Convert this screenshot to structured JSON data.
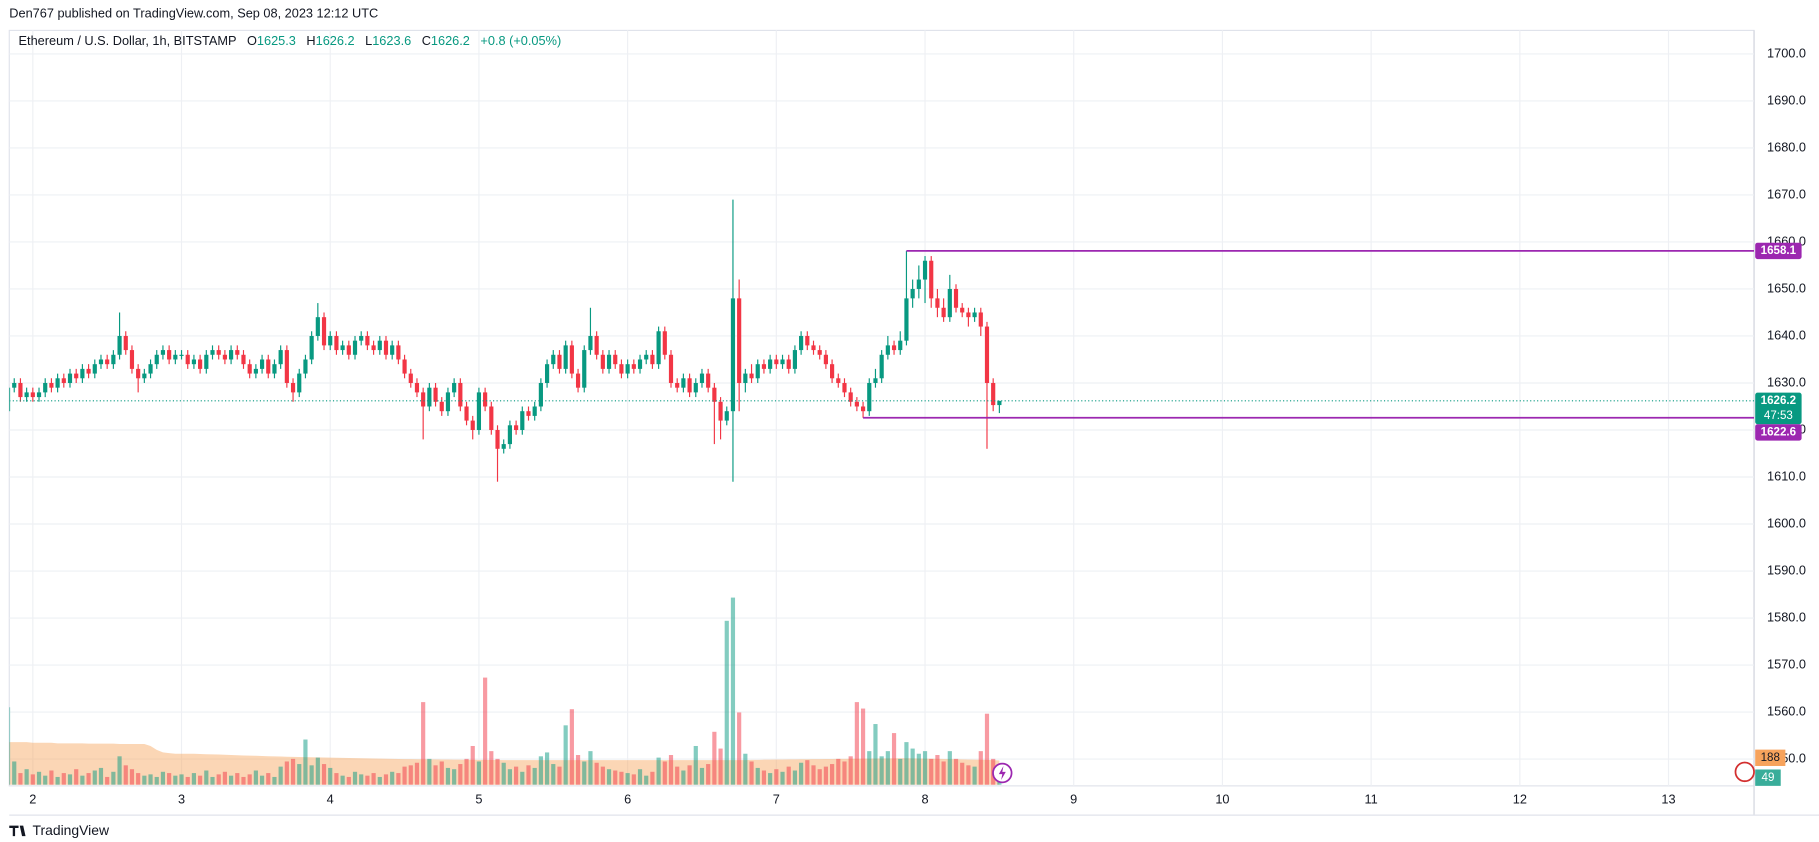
{
  "header": "Den767 published on TradingView.com, Sep 08, 2023 12:12 UTC",
  "footer": "TradingView",
  "chart_data": {
    "type": "candlestick",
    "symbol": "Ethereum / U.S. Dollar, 1h, BITSTAMP",
    "ohlc_labels": [
      "O",
      "H",
      "L",
      "C"
    ],
    "legend_change": "+0.8 (+0.05%)",
    "countdown": "47:53",
    "up_color": "#089981",
    "down_color": "#f23645",
    "volume_ma_color": "#f7a35c",
    "level_color": "#9c27b0",
    "grid": true,
    "xlim": [
      0.2,
      281.8
    ],
    "xticks": [
      {
        "value": 4,
        "label": "2"
      },
      {
        "value": 28,
        "label": "3"
      },
      {
        "value": 52,
        "label": "4"
      },
      {
        "value": 76,
        "label": "5"
      },
      {
        "value": 100,
        "label": "6"
      },
      {
        "value": 124,
        "label": "7"
      },
      {
        "value": 148,
        "label": "8"
      },
      {
        "value": 172,
        "label": "9"
      },
      {
        "value": 196,
        "label": "10"
      },
      {
        "value": 220,
        "label": "11"
      },
      {
        "value": 244,
        "label": "12"
      },
      {
        "value": 268,
        "label": "13"
      }
    ],
    "ylim": [
      1544.3,
      1705
    ],
    "yticks": [
      {
        "value": 1550,
        "label": "1550.0"
      },
      {
        "value": 1560,
        "label": "1560.0"
      },
      {
        "value": 1570,
        "label": "1570.0"
      },
      {
        "value": 1580,
        "label": "1580.0"
      },
      {
        "value": 1590,
        "label": "1590.0"
      },
      {
        "value": 1600,
        "label": "1600.0"
      },
      {
        "value": 1610,
        "label": "1610.0"
      },
      {
        "value": 1620,
        "label": "1620.0"
      },
      {
        "value": 1630,
        "label": "1630.0"
      },
      {
        "value": 1640,
        "label": "1640.0"
      },
      {
        "value": 1650,
        "label": "1650.0"
      },
      {
        "value": 1660,
        "label": "1660.0"
      },
      {
        "value": 1670,
        "label": "1670.0"
      },
      {
        "value": 1680,
        "label": "1680.0"
      },
      {
        "value": 1690,
        "label": "1690.0"
      },
      {
        "value": 1700,
        "label": "1700.0"
      }
    ],
    "levels": [
      {
        "value": 1658.1,
        "x": 145
      },
      {
        "value": 1622.6,
        "x": 138
      }
    ],
    "ohlc": [
      [
        1624,
        1631,
        1618,
        1629
      ],
      [
        1629,
        1631,
        1628,
        1630
      ],
      [
        1630,
        1631,
        1626,
        1627
      ],
      [
        1627,
        1629,
        1626,
        1628
      ],
      [
        1628,
        1629,
        1626,
        1627
      ],
      [
        1627,
        1629,
        1626,
        1628
      ],
      [
        1628,
        1631,
        1627,
        1630
      ],
      [
        1630,
        1631,
        1628,
        1629
      ],
      [
        1629,
        1632,
        1628,
        1631
      ],
      [
        1631,
        1632,
        1629,
        1630
      ],
      [
        1630,
        1633,
        1629,
        1632
      ],
      [
        1632,
        1633,
        1630,
        1631
      ],
      [
        1631,
        1634,
        1630,
        1633
      ],
      [
        1633,
        1634,
        1631,
        1632
      ],
      [
        1632,
        1635,
        1631,
        1634
      ],
      [
        1634,
        1636,
        1633,
        1635
      ],
      [
        1635,
        1636,
        1633,
        1634
      ],
      [
        1634,
        1637,
        1633,
        1636
      ],
      [
        1636,
        1645,
        1635,
        1640
      ],
      [
        1640,
        1641,
        1636,
        1637
      ],
      [
        1637,
        1638,
        1632,
        1633
      ],
      [
        1633,
        1634,
        1628,
        1631
      ],
      [
        1631,
        1633,
        1630,
        1632
      ],
      [
        1632,
        1635,
        1631,
        1634
      ],
      [
        1634,
        1637,
        1633,
        1636
      ],
      [
        1636,
        1638,
        1635,
        1637
      ],
      [
        1637,
        1638,
        1634,
        1635
      ],
      [
        1635,
        1637,
        1634,
        1636
      ],
      [
        1636,
        1637,
        1635,
        1636
      ],
      [
        1636,
        1637,
        1633,
        1634
      ],
      [
        1634,
        1636,
        1633,
        1635
      ],
      [
        1635,
        1636,
        1632,
        1633
      ],
      [
        1633,
        1637,
        1632,
        1636
      ],
      [
        1636,
        1638,
        1635,
        1637
      ],
      [
        1637,
        1638,
        1635,
        1636
      ],
      [
        1636,
        1637,
        1634,
        1635
      ],
      [
        1635,
        1638,
        1634,
        1637
      ],
      [
        1637,
        1638,
        1635,
        1636
      ],
      [
        1636,
        1637,
        1633,
        1634
      ],
      [
        1634,
        1635,
        1631,
        1632
      ],
      [
        1632,
        1634,
        1631,
        1633
      ],
      [
        1633,
        1636,
        1632,
        1635
      ],
      [
        1635,
        1636,
        1631,
        1632
      ],
      [
        1632,
        1635,
        1631,
        1634
      ],
      [
        1634,
        1638,
        1633,
        1637
      ],
      [
        1637,
        1638,
        1629,
        1630
      ],
      [
        1630,
        1631,
        1626,
        1628
      ],
      [
        1628,
        1633,
        1627,
        1632
      ],
      [
        1632,
        1636,
        1631,
        1635
      ],
      [
        1635,
        1641,
        1634,
        1640
      ],
      [
        1640,
        1647,
        1639,
        1644
      ],
      [
        1644,
        1645,
        1637,
        1638
      ],
      [
        1638,
        1641,
        1637,
        1640
      ],
      [
        1640,
        1641,
        1636,
        1637
      ],
      [
        1637,
        1639,
        1636,
        1638
      ],
      [
        1638,
        1639,
        1635,
        1636
      ],
      [
        1636,
        1640,
        1635,
        1639
      ],
      [
        1639,
        1641,
        1638,
        1640
      ],
      [
        1640,
        1641,
        1637,
        1638
      ],
      [
        1638,
        1639,
        1636,
        1637
      ],
      [
        1637,
        1640,
        1636,
        1639
      ],
      [
        1639,
        1640,
        1635,
        1636
      ],
      [
        1636,
        1639,
        1635,
        1638
      ],
      [
        1638,
        1639,
        1634,
        1635
      ],
      [
        1635,
        1636,
        1631,
        1632
      ],
      [
        1632,
        1633,
        1629,
        1630
      ],
      [
        1630,
        1631,
        1627,
        1628
      ],
      [
        1628,
        1629,
        1618,
        1625
      ],
      [
        1625,
        1630,
        1624,
        1629
      ],
      [
        1629,
        1630,
        1625,
        1626
      ],
      [
        1626,
        1627,
        1623,
        1624
      ],
      [
        1624,
        1629,
        1623,
        1628
      ],
      [
        1628,
        1631,
        1627,
        1630
      ],
      [
        1630,
        1631,
        1624,
        1625
      ],
      [
        1625,
        1626,
        1621,
        1622
      ],
      [
        1622,
        1623,
        1618,
        1620
      ],
      [
        1620,
        1629,
        1619,
        1628
      ],
      [
        1628,
        1629,
        1624,
        1625
      ],
      [
        1625,
        1626,
        1619,
        1620
      ],
      [
        1620,
        1621,
        1609,
        1616
      ],
      [
        1616,
        1618,
        1615,
        1617
      ],
      [
        1617,
        1622,
        1616,
        1621
      ],
      [
        1621,
        1622,
        1619,
        1620
      ],
      [
        1620,
        1625,
        1619,
        1624
      ],
      [
        1624,
        1625,
        1622,
        1623
      ],
      [
        1623,
        1626,
        1622,
        1625
      ],
      [
        1625,
        1631,
        1624,
        1630
      ],
      [
        1630,
        1635,
        1629,
        1634
      ],
      [
        1634,
        1637,
        1633,
        1636
      ],
      [
        1636,
        1637,
        1632,
        1633
      ],
      [
        1633,
        1639,
        1632,
        1638
      ],
      [
        1638,
        1639,
        1631,
        1632
      ],
      [
        1632,
        1633,
        1628,
        1629
      ],
      [
        1629,
        1638,
        1628,
        1637
      ],
      [
        1637,
        1646,
        1636,
        1640
      ],
      [
        1640,
        1641,
        1635,
        1636
      ],
      [
        1636,
        1637,
        1632,
        1633
      ],
      [
        1633,
        1637,
        1632,
        1636
      ],
      [
        1636,
        1637,
        1633,
        1634
      ],
      [
        1634,
        1635,
        1631,
        1632
      ],
      [
        1632,
        1635,
        1631,
        1634
      ],
      [
        1634,
        1635,
        1632,
        1633
      ],
      [
        1633,
        1636,
        1632,
        1635
      ],
      [
        1635,
        1637,
        1634,
        1636
      ],
      [
        1636,
        1637,
        1633,
        1634
      ],
      [
        1634,
        1642,
        1633,
        1641
      ],
      [
        1641,
        1642,
        1635,
        1636
      ],
      [
        1636,
        1637,
        1629,
        1630
      ],
      [
        1630,
        1631,
        1628,
        1629
      ],
      [
        1629,
        1632,
        1628,
        1631
      ],
      [
        1631,
        1632,
        1627,
        1628
      ],
      [
        1628,
        1631,
        1627,
        1630
      ],
      [
        1630,
        1633,
        1629,
        1632
      ],
      [
        1632,
        1633,
        1628,
        1629
      ],
      [
        1629,
        1630,
        1617,
        1626
      ],
      [
        1626,
        1627,
        1618,
        1622
      ],
      [
        1622,
        1625,
        1621,
        1624
      ],
      [
        1624,
        1669,
        1609,
        1648
      ],
      [
        1648,
        1652,
        1624,
        1630
      ],
      [
        1630,
        1633,
        1628,
        1632
      ],
      [
        1632,
        1634,
        1630,
        1631
      ],
      [
        1631,
        1635,
        1630,
        1634
      ],
      [
        1634,
        1635,
        1632,
        1633
      ],
      [
        1633,
        1636,
        1632,
        1635
      ],
      [
        1635,
        1636,
        1633,
        1634
      ],
      [
        1634,
        1636,
        1633,
        1635
      ],
      [
        1635,
        1636,
        1632,
        1633
      ],
      [
        1633,
        1638,
        1632,
        1637
      ],
      [
        1637,
        1641,
        1636,
        1640
      ],
      [
        1640,
        1641,
        1637,
        1638
      ],
      [
        1638,
        1639,
        1636,
        1637
      ],
      [
        1637,
        1638,
        1635,
        1636
      ],
      [
        1636,
        1637,
        1633,
        1634
      ],
      [
        1634,
        1635,
        1630,
        1631
      ],
      [
        1631,
        1632,
        1629,
        1630
      ],
      [
        1630,
        1631,
        1627,
        1628
      ],
      [
        1628,
        1629,
        1625,
        1626
      ],
      [
        1626,
        1627,
        1624,
        1625
      ],
      [
        1625,
        1626,
        1622.6,
        1624
      ],
      [
        1624,
        1631,
        1623,
        1630
      ],
      [
        1630,
        1633,
        1629,
        1631
      ],
      [
        1631,
        1637,
        1630,
        1636
      ],
      [
        1636,
        1640,
        1635,
        1638
      ],
      [
        1638,
        1639,
        1636,
        1637
      ],
      [
        1637,
        1641,
        1636,
        1639
      ],
      [
        1639,
        1658.1,
        1638,
        1648
      ],
      [
        1648,
        1652,
        1646,
        1650
      ],
      [
        1650,
        1655,
        1648,
        1652
      ],
      [
        1652,
        1657,
        1647,
        1656
      ],
      [
        1656,
        1657,
        1646,
        1648
      ],
      [
        1648,
        1650,
        1644,
        1646
      ],
      [
        1646,
        1648,
        1643,
        1644
      ],
      [
        1644,
        1653,
        1643,
        1650
      ],
      [
        1650,
        1651,
        1645,
        1646
      ],
      [
        1646,
        1647,
        1644,
        1645
      ],
      [
        1645,
        1646,
        1642,
        1644
      ],
      [
        1644,
        1646,
        1643,
        1645
      ],
      [
        1645,
        1646,
        1640,
        1642
      ],
      [
        1642,
        1643,
        1616,
        1630
      ],
      [
        1630,
        1631,
        1624,
        1625.3
      ],
      [
        1625.3,
        1626.2,
        1623.6,
        1626.2
      ]
    ],
    "volume": [
      600,
      180,
      90,
      120,
      80,
      100,
      70,
      110,
      60,
      90,
      80,
      120,
      70,
      90,
      110,
      130,
      60,
      100,
      220,
      150,
      120,
      90,
      70,
      80,
      60,
      100,
      90,
      70,
      80,
      60,
      90,
      70,
      110,
      60,
      80,
      100,
      70,
      90,
      60,
      80,
      110,
      70,
      90,
      60,
      140,
      180,
      200,
      160,
      350,
      150,
      210,
      160,
      130,
      90,
      70,
      60,
      100,
      80,
      70,
      90,
      60,
      80,
      100,
      90,
      140,
      150,
      170,
      640,
      200,
      150,
      180,
      130,
      120,
      160,
      200,
      300,
      180,
      830,
      260,
      200,
      170,
      120,
      140,
      100,
      150,
      130,
      220,
      250,
      160,
      140,
      460,
      585,
      230,
      180,
      260,
      170,
      140,
      120,
      110,
      100,
      90,
      80,
      120,
      70,
      100,
      210,
      180,
      230,
      140,
      110,
      150,
      300,
      130,
      160,
      410,
      280,
      1270,
      1450,
      560,
      240,
      180,
      130,
      110,
      90,
      120,
      100,
      140,
      110,
      170,
      190,
      150,
      120,
      140,
      160,
      200,
      180,
      220,
      640,
      590,
      260,
      470,
      220,
      260,
      400,
      200,
      330,
      280,
      240,
      260,
      200,
      230,
      180,
      260,
      200,
      170,
      150,
      140,
      260,
      550,
      200,
      49
    ],
    "volume_ma": [
      330,
      330,
      330,
      330,
      325,
      325,
      325,
      325,
      320,
      320,
      320,
      320,
      320,
      318,
      318,
      318,
      318,
      318,
      315,
      315,
      315,
      315,
      315,
      300,
      270,
      250,
      245,
      240,
      240,
      240,
      240,
      238,
      236,
      235,
      234,
      232,
      230,
      228,
      226,
      225,
      224,
      222,
      220,
      219,
      218,
      217,
      216,
      215,
      214,
      213,
      212,
      211,
      210,
      209,
      208,
      207,
      206,
      205,
      204,
      203,
      202,
      201,
      200,
      199,
      198,
      198,
      197,
      197,
      196,
      196,
      195,
      195,
      194,
      194,
      193,
      193,
      192,
      192,
      191,
      191,
      190,
      190,
      190,
      190,
      190,
      190,
      190,
      190,
      190,
      190,
      190,
      190,
      190,
      190,
      190,
      190,
      190,
      190,
      190,
      190,
      190,
      190,
      190,
      190,
      190,
      190,
      190,
      190,
      190,
      190,
      190,
      190,
      190,
      190,
      190,
      190,
      190,
      190,
      190,
      190,
      192,
      192,
      194,
      194,
      195,
      195,
      196,
      196,
      197,
      197,
      198,
      198,
      199,
      199,
      200,
      200,
      201,
      201,
      202,
      202,
      203,
      203,
      204,
      204,
      205,
      205,
      204,
      203,
      202,
      201,
      200,
      199,
      198,
      197,
      196,
      195,
      194,
      193,
      192,
      190,
      188
    ]
  }
}
